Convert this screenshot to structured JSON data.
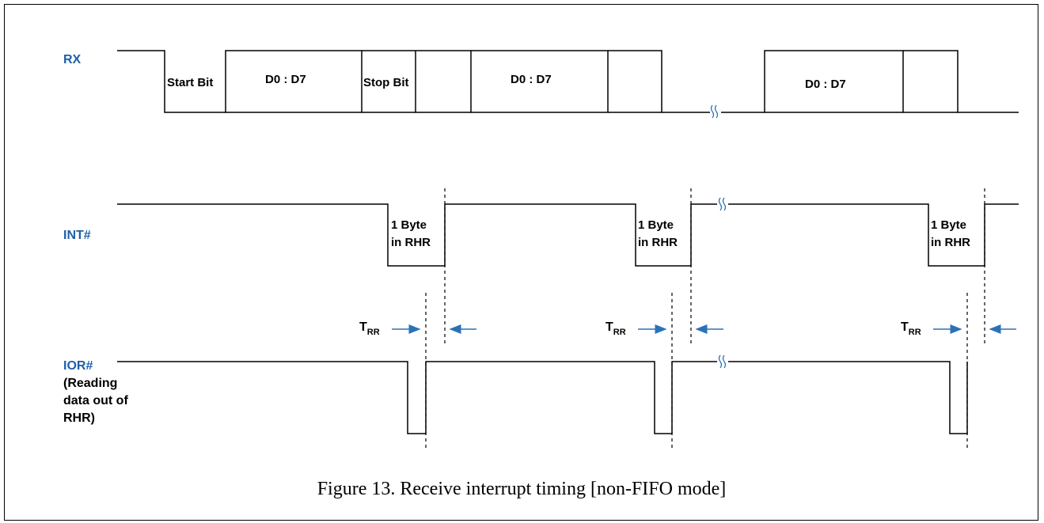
{
  "signals": {
    "rx": "RX",
    "int": "INT#",
    "ior": [
      "IOR#",
      "(Reading",
      "data out of",
      "RHR)"
    ]
  },
  "rx_fields": {
    "start_bit": "Start Bit",
    "data_1": "D0 : D7",
    "stop_bit": "Stop Bit",
    "data_2": "D0 : D7",
    "data_3": "D0 : D7"
  },
  "int_boxes": [
    "1 Byte",
    "in RHR"
  ],
  "trr": {
    "main": "T",
    "sub": "RR"
  },
  "caption": "Figure 13. Receive interrupt timing [non-FIFO mode]",
  "colors": {
    "label": "#1f5fa8",
    "arrow": "#2a72b8",
    "line": "#000000"
  }
}
